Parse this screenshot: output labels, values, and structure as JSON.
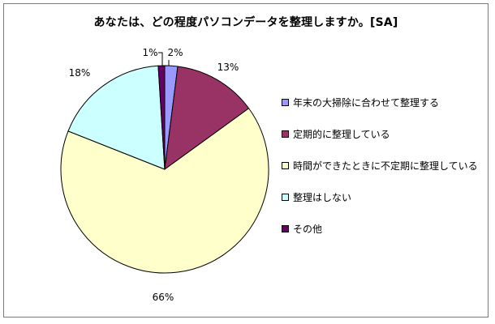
{
  "chart_data": {
    "type": "pie",
    "title": "あなたは、どの程度パソコンデータを整理しますか。[SA]",
    "categories": [
      "年末の大掃除に合わせて整理する",
      "定期的に整理している",
      "時間ができたときに不定期に整理している",
      "整理はしない",
      "その他"
    ],
    "values": [
      2,
      13,
      66,
      18,
      1
    ],
    "labels": [
      "2%",
      "13%",
      "66%",
      "18%",
      "1%"
    ],
    "colors": [
      "#9999ff",
      "#993366",
      "#ffffcc",
      "#ccffff",
      "#660066"
    ],
    "legend_position": "right"
  }
}
